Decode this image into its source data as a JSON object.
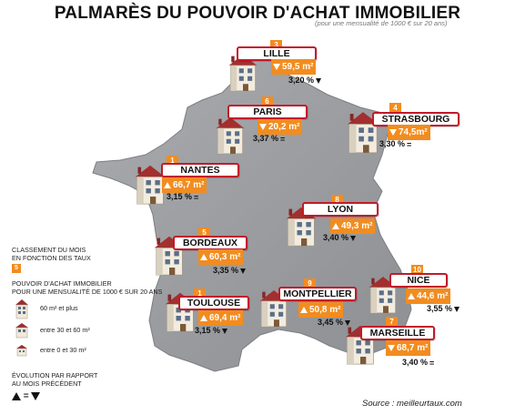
{
  "title": "PALMARÈS DU POUVOIR D'ACHAT IMMOBILIER",
  "subtitle": "(pour une mensualité de 1000 € sur 20 ans)",
  "source": "Source : meilleurtaux.com",
  "colors": {
    "accent": "#f28c1f",
    "label_border": "#c21a2a",
    "map": "#9a9c9f"
  },
  "cities": [
    {
      "name": "LILLE",
      "rank": "3",
      "value": "59,5 m²",
      "value_trend": "down",
      "rate": "3,20 %",
      "rate_trend": "down"
    },
    {
      "name": "PARIS",
      "rank": "6",
      "value": "20,2 m²",
      "value_trend": "down",
      "rate": "3,37 %",
      "rate_trend": "eq"
    },
    {
      "name": "STRASBOURG",
      "rank": "4",
      "value": "74,5m²",
      "value_trend": "down",
      "rate": "3,30 %",
      "rate_trend": "eq"
    },
    {
      "name": "NANTES",
      "rank": "1",
      "value": "66,7 m²",
      "value_trend": "up",
      "rate": "3,15 %",
      "rate_trend": "eq"
    },
    {
      "name": "LYON",
      "rank": "8",
      "value": "49,3 m²",
      "value_trend": "up",
      "rate": "3,40 %",
      "rate_trend": "down"
    },
    {
      "name": "BORDEAUX",
      "rank": "5",
      "value": "60,3 m²",
      "value_trend": "up",
      "rate": "3,35 %",
      "rate_trend": "down"
    },
    {
      "name": "TOULOUSE",
      "rank": "1",
      "value": "69,4 m²",
      "value_trend": "up",
      "rate": "3,15 %",
      "rate_trend": "down"
    },
    {
      "name": "MONTPELLIER",
      "rank": "9",
      "value": "50,8 m²",
      "value_trend": "up",
      "rate": "3,45 %",
      "rate_trend": "down"
    },
    {
      "name": "NICE",
      "rank": "10",
      "value": "44,6 m²",
      "value_trend": "up",
      "rate": "3,55 %",
      "rate_trend": "down"
    },
    {
      "name": "MARSEILLE",
      "rank": "7",
      "value": "68,7 m²",
      "value_trend": "down",
      "rate": "3,40 %",
      "rate_trend": "eq"
    }
  ],
  "legend": {
    "classement_line1": "CLASSEMENT DU MOIS",
    "classement_line2": "EN FONCTION DES TAUX",
    "classement_sample": "5",
    "pouvoir_line1": "POUVOIR D'ACHAT IMMOBILIER",
    "pouvoir_line2": "POUR UNE MENSUALITÉ DE 1000 € SUR 20 ANS",
    "size_large": "60 m² et plus",
    "size_medium": "entre 30 et 60 m²",
    "size_small": "entre 0 et 30 m²",
    "evolution_line1": "ÉVOLUTION PAR RAPPORT",
    "evolution_line2": "AU MOIS PRÉCÉDENT",
    "evolution_eq": "="
  }
}
